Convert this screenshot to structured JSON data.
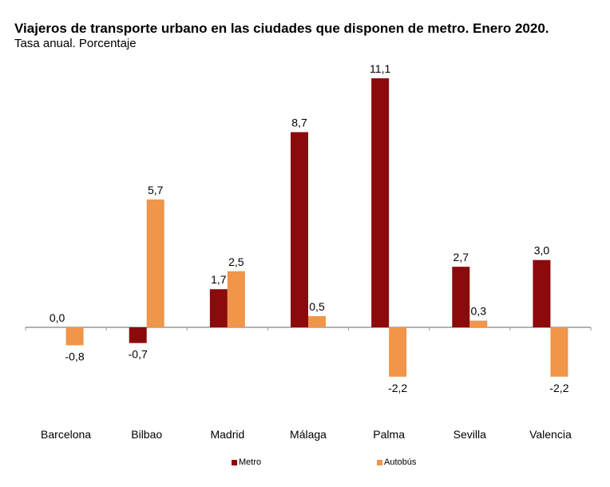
{
  "chart_data": {
    "type": "bar",
    "title": "Viajeros de transporte urbano en las ciudades que disponen de metro. Enero 2020.",
    "subtitle": "Tasa anual. Porcentaje",
    "xlabel": "",
    "ylabel": "",
    "categories": [
      "Barcelona",
      "Bilbao",
      "Madrid",
      "Málaga",
      "Palma",
      "Sevilla",
      "Valencia"
    ],
    "series": [
      {
        "name": "Metro",
        "color": "#8B0A0C",
        "values": [
          0.0,
          -0.7,
          1.7,
          8.7,
          11.1,
          2.7,
          3.0
        ],
        "labels": [
          "0,0",
          "-0,7",
          "1,7",
          "8,7",
          "11,1",
          "2,7",
          "3,0"
        ]
      },
      {
        "name": "Autobús",
        "color": "#F0954A",
        "values": [
          -0.8,
          5.7,
          2.5,
          0.5,
          -2.2,
          0.3,
          -2.2
        ],
        "labels": [
          "-0,8",
          "5,7",
          "2,5",
          "0,5",
          "-2,2",
          "0,3",
          "-2,2"
        ]
      }
    ],
    "ylim": [
      -2.5,
      11.5
    ],
    "grid": false,
    "legend": "bottom"
  }
}
